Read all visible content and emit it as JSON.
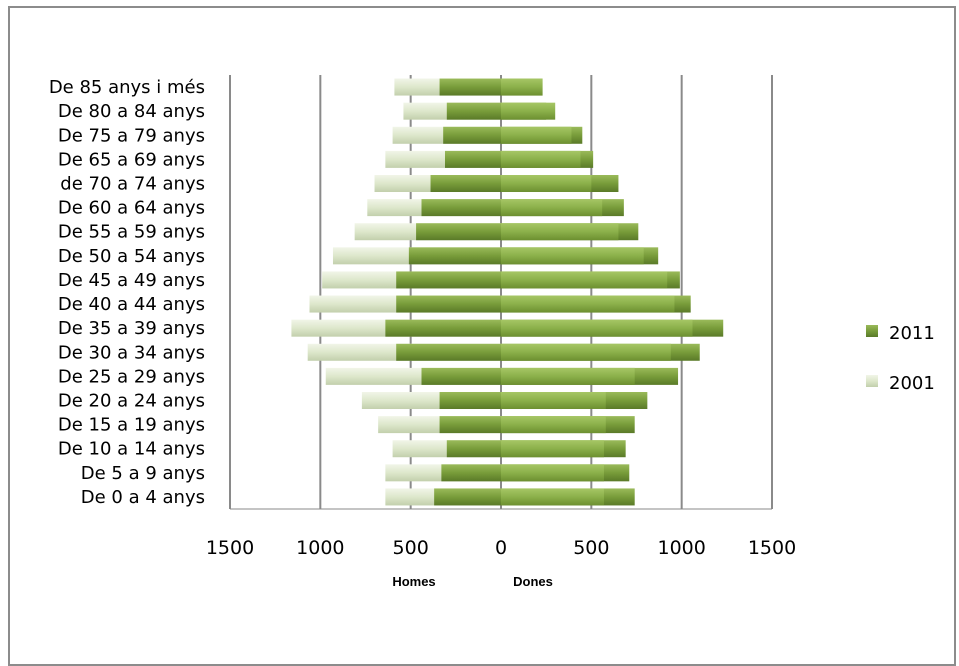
{
  "chart_data": {
    "type": "bar",
    "orientation": "horizontal",
    "layout": "population-pyramid",
    "categories": [
      "De 0 a 4 anys",
      "De 5 a 9 anys",
      "De 10 a 14 anys",
      "De 15 a 19 anys",
      "De 20 a 24 anys",
      "De 25 a 29 anys",
      "De 30 a 34 anys",
      "De 35 a 39 anys",
      "De 40 a 44 anys",
      "De 45 a 49 anys",
      "De 50 a 54 anys",
      "De 55 a 59 anys",
      "De 60 a 64 anys",
      "de 70 a 74 anys",
      "De 65 a 69 anys",
      "De 75 a 79 anys",
      "De 80 a 84 anys",
      "De 85 anys i més"
    ],
    "series": [
      {
        "name": "2011",
        "color": "#6e8f32",
        "men": [
          370,
          330,
          300,
          340,
          340,
          440,
          580,
          640,
          580,
          580,
          510,
          470,
          440,
          390,
          310,
          320,
          300,
          340
        ],
        "women": [
          740,
          710,
          690,
          740,
          810,
          980,
          1100,
          1230,
          1050,
          990,
          870,
          760,
          680,
          650,
          510,
          450,
          250,
          230
        ]
      },
      {
        "name": "2001",
        "color": "#dce6c8",
        "men": [
          640,
          640,
          600,
          680,
          770,
          970,
          1070,
          1160,
          1060,
          990,
          930,
          810,
          740,
          700,
          640,
          600,
          540,
          590
        ],
        "women": [
          570,
          570,
          570,
          580,
          580,
          740,
          940,
          1060,
          960,
          920,
          790,
          650,
          560,
          500,
          440,
          390,
          300,
          230
        ]
      }
    ],
    "xlabel_left": "Homes",
    "xlabel_right": "Dones",
    "xlim": [
      -1500,
      1500
    ],
    "xticks": [
      -1500,
      -1000,
      -500,
      0,
      500,
      1000,
      1500
    ],
    "xtick_labels": [
      "1500",
      "1000",
      "500",
      "0",
      "500",
      "1000",
      "1500"
    ],
    "grid": "vertical",
    "legend": {
      "position": "right",
      "entries": [
        "2011",
        "2001"
      ]
    },
    "title": ""
  }
}
